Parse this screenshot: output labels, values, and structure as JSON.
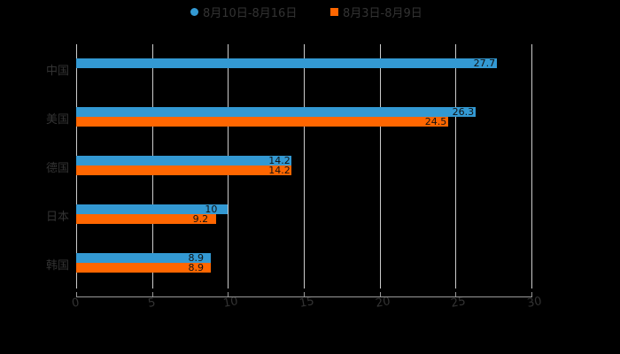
{
  "chart_data": {
    "type": "bar",
    "orientation": "horizontal",
    "title": "",
    "xlabel": "",
    "ylabel": "",
    "categories": [
      "中国",
      "美国",
      "德国",
      "日本",
      "韩国"
    ],
    "series": [
      {
        "name": "8月10日-8月16日",
        "color": "#3399d3",
        "marker": "circle",
        "values": [
          27.7,
          26.3,
          14.2,
          10.0,
          8.9
        ]
      },
      {
        "name": "8月3日-8月9日",
        "color": "#ff6600",
        "marker": "square",
        "values": [
          null,
          24.5,
          14.2,
          9.2,
          8.9
        ]
      }
    ],
    "xlim": [
      0,
      30
    ],
    "xticks": [
      "0",
      "5",
      "10",
      "15",
      "20",
      "25",
      "30"
    ],
    "grid": true,
    "legend_position": "top"
  },
  "legend": {
    "items": [
      "8月10日-8月16日",
      "8月3日-8月9日"
    ]
  }
}
